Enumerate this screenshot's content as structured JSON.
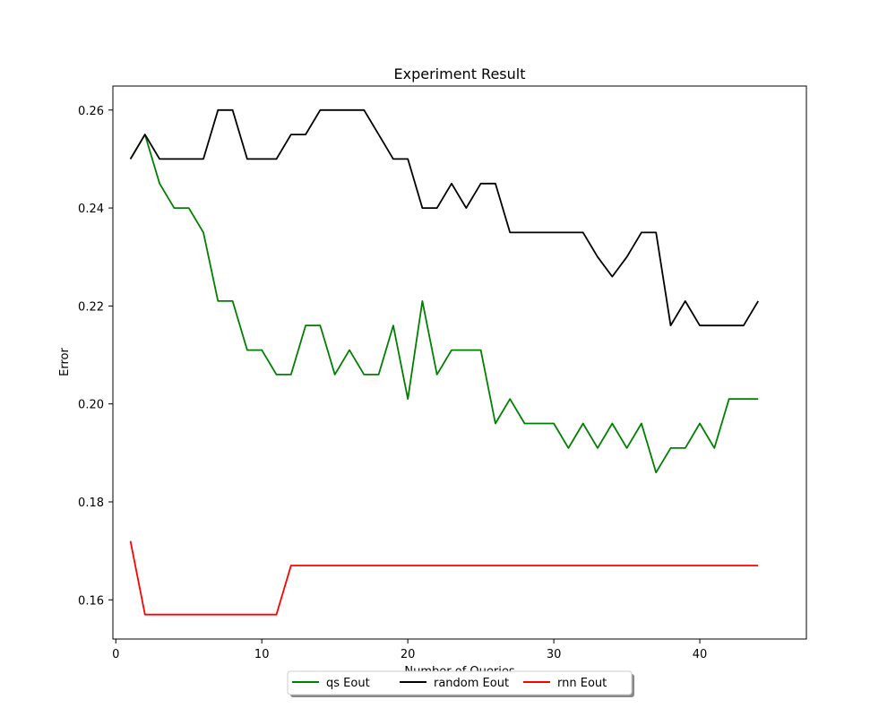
{
  "chart_data": {
    "type": "line",
    "title": "Experiment Result",
    "xlabel": "Number of Queries",
    "ylabel": "Error",
    "xlim": [
      -0.2,
      47.3
    ],
    "ylim": [
      0.152,
      0.2649
    ],
    "xticks": [
      0,
      10,
      20,
      30,
      40
    ],
    "yticks": [
      0.16,
      0.18,
      0.2,
      0.22,
      0.24,
      0.26
    ],
    "legend_position": "bottom-center",
    "grid": false,
    "x": [
      1,
      2,
      3,
      4,
      5,
      6,
      7,
      8,
      9,
      10,
      11,
      12,
      13,
      14,
      15,
      16,
      17,
      18,
      19,
      20,
      21,
      22,
      23,
      24,
      25,
      26,
      27,
      28,
      29,
      30,
      31,
      32,
      33,
      34,
      35,
      36,
      37,
      38,
      39,
      40,
      41,
      42,
      43,
      44
    ],
    "series": [
      {
        "name": "qs Eout",
        "color": "#008000",
        "values": [
          0.25,
          0.255,
          0.245,
          0.24,
          0.24,
          0.235,
          0.221,
          0.221,
          0.211,
          0.211,
          0.206,
          0.206,
          0.216,
          0.216,
          0.206,
          0.211,
          0.206,
          0.206,
          0.216,
          0.201,
          0.221,
          0.206,
          0.211,
          0.211,
          0.211,
          0.196,
          0.201,
          0.196,
          0.196,
          0.196,
          0.191,
          0.196,
          0.191,
          0.196,
          0.191,
          0.196,
          0.186,
          0.191,
          0.191,
          0.196,
          0.191,
          0.201,
          0.201,
          0.201
        ]
      },
      {
        "name": "random Eout",
        "color": "#000000",
        "values": [
          0.25,
          0.255,
          0.25,
          0.25,
          0.25,
          0.25,
          0.26,
          0.26,
          0.25,
          0.25,
          0.25,
          0.255,
          0.255,
          0.26,
          0.26,
          0.26,
          0.26,
          0.255,
          0.25,
          0.25,
          0.24,
          0.24,
          0.245,
          0.24,
          0.245,
          0.245,
          0.235,
          0.235,
          0.235,
          0.235,
          0.235,
          0.235,
          0.23,
          0.226,
          0.23,
          0.235,
          0.235,
          0.216,
          0.221,
          0.216,
          0.216,
          0.216,
          0.216,
          0.221
        ]
      },
      {
        "name": "rnn Eout",
        "color": "#ff0000",
        "values": [
          0.172,
          0.157,
          0.157,
          0.157,
          0.157,
          0.157,
          0.157,
          0.157,
          0.157,
          0.157,
          0.157,
          0.167,
          0.167,
          0.167,
          0.167,
          0.167,
          0.167,
          0.167,
          0.167,
          0.167,
          0.167,
          0.167,
          0.167,
          0.167,
          0.167,
          0.167,
          0.167,
          0.167,
          0.167,
          0.167,
          0.167,
          0.167,
          0.167,
          0.167,
          0.167,
          0.167,
          0.167,
          0.167,
          0.167,
          0.167,
          0.167,
          0.167,
          0.167,
          0.167
        ]
      }
    ]
  }
}
